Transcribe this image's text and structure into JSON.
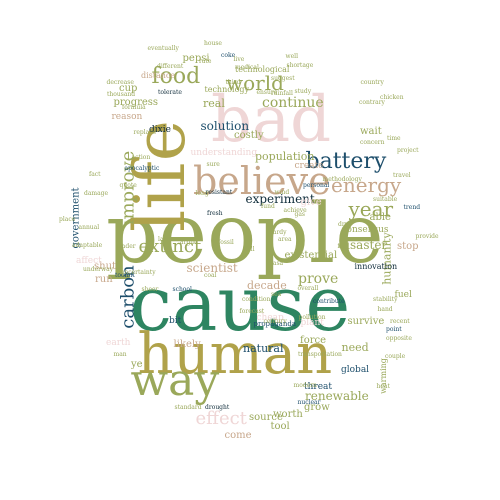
{
  "colors": {
    "olive": "#9aa85a",
    "gold": "#b0a24a",
    "teal": "#2e8561",
    "navy": "#1d4e6b",
    "pink": "#efd6d6",
    "tan": "#c7a78b",
    "dark": "#0f2c3a"
  },
  "words": [
    {
      "text": "people",
      "color": "olive",
      "size": 82,
      "vertical": false
    },
    {
      "text": "cause",
      "color": "teal",
      "size": 76,
      "vertical": false
    },
    {
      "text": "life",
      "color": "gold",
      "size": 70,
      "vertical": true
    },
    {
      "text": "human",
      "color": "gold",
      "size": 56,
      "vertical": false
    },
    {
      "text": "bad",
      "color": "pink",
      "size": 64,
      "vertical": false
    },
    {
      "text": "way",
      "color": "olive",
      "size": 44,
      "vertical": false
    },
    {
      "text": "believe",
      "color": "tan",
      "size": 38,
      "vertical": false
    },
    {
      "text": "battery",
      "color": "navy",
      "size": 22,
      "vertical": false
    },
    {
      "text": "food",
      "color": "olive",
      "size": 22,
      "vertical": false
    },
    {
      "text": "world",
      "color": "olive",
      "size": 20,
      "vertical": false
    },
    {
      "text": "energy",
      "color": "tan",
      "size": 20,
      "vertical": false
    },
    {
      "text": "year",
      "color": "olive",
      "size": 20,
      "vertical": false
    },
    {
      "text": "extinct",
      "color": "olive",
      "size": 18,
      "vertical": false
    },
    {
      "text": "improve",
      "color": "olive",
      "size": 18,
      "vertical": true
    },
    {
      "text": "carbon",
      "color": "navy",
      "size": 18,
      "vertical": true
    },
    {
      "text": "effect",
      "color": "pink",
      "size": 18,
      "vertical": false
    },
    {
      "text": "continue",
      "color": "olive",
      "size": 14,
      "vertical": false
    },
    {
      "text": "experiment",
      "color": "dark",
      "size": 12,
      "vertical": false
    },
    {
      "text": "solution",
      "color": "navy",
      "size": 12,
      "vertical": false
    },
    {
      "text": "population",
      "color": "olive",
      "size": 11,
      "vertical": false
    },
    {
      "text": "scientist",
      "color": "tan",
      "size": 12,
      "vertical": false
    },
    {
      "text": "prove",
      "color": "olive",
      "size": 14,
      "vertical": false
    },
    {
      "text": "renewable",
      "color": "olive",
      "size": 12,
      "vertical": false
    },
    {
      "text": "natural",
      "color": "navy",
      "size": 11,
      "vertical": false
    },
    {
      "text": "force",
      "color": "olive",
      "size": 10,
      "vertical": false
    },
    {
      "text": "need",
      "color": "olive",
      "size": 11,
      "vertical": false
    },
    {
      "text": "decade",
      "color": "tan",
      "size": 11,
      "vertical": false
    },
    {
      "text": "disaster",
      "color": "olive",
      "size": 12,
      "vertical": false
    },
    {
      "text": "humanity",
      "color": "olive",
      "size": 11,
      "vertical": true
    },
    {
      "text": "government",
      "color": "navy",
      "size": 10,
      "vertical": true
    },
    {
      "text": "global",
      "color": "navy",
      "size": 9,
      "vertical": false
    },
    {
      "text": "grow",
      "color": "olive",
      "size": 10,
      "vertical": false
    },
    {
      "text": "threat",
      "color": "navy",
      "size": 9,
      "vertical": false
    },
    {
      "text": "worth",
      "color": "olive",
      "size": 10,
      "vertical": false
    },
    {
      "text": "source",
      "color": "olive",
      "size": 10,
      "vertical": false
    },
    {
      "text": "come",
      "color": "tan",
      "size": 10,
      "vertical": false
    },
    {
      "text": "tool",
      "color": "olive",
      "size": 10,
      "vertical": false
    },
    {
      "text": "survive",
      "color": "olive",
      "size": 10,
      "vertical": false
    },
    {
      "text": "existential",
      "color": "olive",
      "size": 10,
      "vertical": false
    },
    {
      "text": "innovation",
      "color": "dark",
      "size": 8,
      "vertical": false
    },
    {
      "text": "costly",
      "color": "olive",
      "size": 10,
      "vertical": false
    },
    {
      "text": "real",
      "color": "olive",
      "size": 11,
      "vertical": false
    },
    {
      "text": "progress",
      "color": "olive",
      "size": 10,
      "vertical": false
    },
    {
      "text": "cup",
      "color": "olive",
      "size": 10,
      "vertical": false
    },
    {
      "text": "reason",
      "color": "tan",
      "size": 9,
      "vertical": false
    },
    {
      "text": "dixie",
      "color": "dark",
      "size": 9,
      "vertical": false
    },
    {
      "text": "pepsi",
      "color": "olive",
      "size": 10,
      "vertical": false
    },
    {
      "text": "technology",
      "color": "olive",
      "size": 8,
      "vertical": false
    },
    {
      "text": "technological",
      "color": "olive",
      "size": 8,
      "vertical": false
    },
    {
      "text": "distance",
      "color": "tan",
      "size": 8,
      "vertical": false
    },
    {
      "text": "create",
      "color": "tan",
      "size": 9,
      "vertical": false
    },
    {
      "text": "consensus",
      "color": "olive",
      "size": 9,
      "vertical": false
    },
    {
      "text": "wait",
      "color": "olive",
      "size": 10,
      "vertical": false
    },
    {
      "text": "able",
      "color": "olive",
      "size": 10,
      "vertical": false
    },
    {
      "text": "stop",
      "color": "tan",
      "size": 10,
      "vertical": false
    },
    {
      "text": "fuel",
      "color": "olive",
      "size": 9,
      "vertical": false
    },
    {
      "text": "bit",
      "color": "navy",
      "size": 9,
      "vertical": false
    },
    {
      "text": "shut",
      "color": "tan",
      "size": 10,
      "vertical": false
    },
    {
      "text": "run",
      "color": "tan",
      "size": 10,
      "vertical": false
    },
    {
      "text": "ye",
      "color": "olive",
      "size": 10,
      "vertical": false
    },
    {
      "text": "likely",
      "color": "tan",
      "size": 10,
      "vertical": false
    },
    {
      "text": "understanding",
      "color": "pink",
      "size": 9,
      "vertical": false
    },
    {
      "text": "give",
      "color": "pink",
      "size": 10,
      "vertical": false
    },
    {
      "text": "affect",
      "color": "pink",
      "size": 9,
      "vertical": false
    },
    {
      "text": "warming",
      "color": "olive",
      "size": 8,
      "vertical": true
    },
    {
      "text": "earth",
      "color": "pink",
      "size": 9,
      "vertical": false
    },
    {
      "text": "plant",
      "color": "pink",
      "size": 9,
      "vertical": false
    },
    {
      "text": "cheap",
      "color": "pink",
      "size": 9,
      "vertical": false
    },
    {
      "text": "propaganda",
      "color": "navy",
      "size": 7,
      "vertical": false
    },
    {
      "text": "century",
      "color": "olive",
      "size": 6,
      "vertical": false
    },
    {
      "text": "standard",
      "color": "olive",
      "size": 6,
      "vertical": false
    },
    {
      "text": "drought",
      "color": "dark",
      "size": 6,
      "vertical": false
    },
    {
      "text": "nuclear",
      "color": "navy",
      "size": 6,
      "vertical": false
    },
    {
      "text": "personal",
      "color": "navy",
      "size": 6,
      "vertical": false
    },
    {
      "text": "methodology",
      "color": "olive",
      "size": 6,
      "vertical": false
    },
    {
      "text": "resistant",
      "color": "dark",
      "size": 6,
      "vertical": false
    },
    {
      "text": "fresh",
      "color": "dark",
      "size": 6,
      "vertical": false
    },
    {
      "text": "sheer",
      "color": "olive",
      "size": 6,
      "vertical": false
    },
    {
      "text": "school",
      "color": "navy",
      "size": 6,
      "vertical": false
    },
    {
      "text": "toolbit",
      "color": "navy",
      "size": 6,
      "vertical": false
    },
    {
      "text": "trader",
      "color": "olive",
      "size": 6,
      "vertical": false
    },
    {
      "text": "large",
      "color": "olive",
      "size": 6,
      "vertical": false
    },
    {
      "text": "argue",
      "color": "olive",
      "size": 6,
      "vertical": false
    },
    {
      "text": "long",
      "color": "olive",
      "size": 6,
      "vertical": false
    },
    {
      "text": "sure",
      "color": "olive",
      "size": 6,
      "vertical": false
    },
    {
      "text": "quote",
      "color": "olive",
      "size": 6,
      "vertical": false
    },
    {
      "text": "action",
      "color": "olive",
      "size": 6,
      "vertical": false
    },
    {
      "text": "apocalyptic",
      "color": "navy",
      "size": 6,
      "vertical": false
    },
    {
      "text": "tolerate",
      "color": "dark",
      "size": 6,
      "vertical": false
    },
    {
      "text": "different",
      "color": "olive",
      "size": 6,
      "vertical": false
    },
    {
      "text": "coke",
      "color": "navy",
      "size": 6,
      "vertical": false
    },
    {
      "text": "medical",
      "color": "olive",
      "size": 6,
      "vertical": false
    },
    {
      "text": "eventually",
      "color": "olive",
      "size": 6,
      "vertical": false
    },
    {
      "text": "ensure",
      "color": "olive",
      "size": 6,
      "vertical": false
    },
    {
      "text": "modern",
      "color": "olive",
      "size": 6,
      "vertical": false
    },
    {
      "text": "heat",
      "color": "olive",
      "size": 6,
      "vertical": false
    },
    {
      "text": "opposite",
      "color": "olive",
      "size": 6,
      "vertical": false
    },
    {
      "text": "recent",
      "color": "olive",
      "size": 6,
      "vertical": false
    },
    {
      "text": "suitable",
      "color": "olive",
      "size": 6,
      "vertical": false
    },
    {
      "text": "provide",
      "color": "olive",
      "size": 6,
      "vertical": false
    },
    {
      "text": "oil",
      "color": "olive",
      "size": 6,
      "vertical": false
    },
    {
      "text": "trend",
      "color": "navy",
      "size": 6,
      "vertical": false
    },
    {
      "text": "rainfall",
      "color": "olive",
      "size": 6,
      "vertical": false
    },
    {
      "text": "stability",
      "color": "olive",
      "size": 6,
      "vertical": false
    },
    {
      "text": "hand",
      "color": "olive",
      "size": 6,
      "vertical": false
    },
    {
      "text": "point",
      "color": "navy",
      "size": 6,
      "vertical": false
    },
    {
      "text": "couple",
      "color": "olive",
      "size": 6,
      "vertical": false
    },
    {
      "text": "shortage",
      "color": "olive",
      "size": 6,
      "vertical": false
    },
    {
      "text": "contrary",
      "color": "olive",
      "size": 6,
      "vertical": false
    },
    {
      "text": "country",
      "color": "olive",
      "size": 6,
      "vertical": false
    },
    {
      "text": "study",
      "color": "olive",
      "size": 6,
      "vertical": false
    },
    {
      "text": "project",
      "color": "olive",
      "size": 6,
      "vertical": false
    },
    {
      "text": "concern",
      "color": "olive",
      "size": 6,
      "vertical": false
    },
    {
      "text": "chicken",
      "color": "olive",
      "size": 6,
      "vertical": false
    },
    {
      "text": "time",
      "color": "olive",
      "size": 6,
      "vertical": false
    },
    {
      "text": "travel",
      "color": "olive",
      "size": 6,
      "vertical": false
    },
    {
      "text": "suggest",
      "color": "olive",
      "size": 6,
      "vertical": false
    },
    {
      "text": "house",
      "color": "olive",
      "size": 6,
      "vertical": false
    },
    {
      "text": "third",
      "color": "olive",
      "size": 6,
      "vertical": false
    },
    {
      "text": "decrease",
      "color": "olive",
      "size": 6,
      "vertical": false
    },
    {
      "text": "thousand",
      "color": "olive",
      "size": 6,
      "vertical": false
    },
    {
      "text": "formula",
      "color": "olive",
      "size": 6,
      "vertical": false
    },
    {
      "text": "replace",
      "color": "olive",
      "size": 6,
      "vertical": false
    },
    {
      "text": "fact",
      "color": "olive",
      "size": 6,
      "vertical": false
    },
    {
      "text": "area",
      "color": "olive",
      "size": 6,
      "vertical": false
    },
    {
      "text": "overall",
      "color": "olive",
      "size": 6,
      "vertical": false
    },
    {
      "text": "pollution",
      "color": "olive",
      "size": 6,
      "vertical": false
    },
    {
      "text": "condition",
      "color": "olive",
      "size": 6,
      "vertical": false
    },
    {
      "text": "contribute",
      "color": "navy",
      "size": 6,
      "vertical": false
    },
    {
      "text": "sea",
      "color": "olive",
      "size": 6,
      "vertical": false
    },
    {
      "text": "gas",
      "color": "olive",
      "size": 6,
      "vertical": false
    },
    {
      "text": "dry",
      "color": "olive",
      "size": 6,
      "vertical": false
    },
    {
      "text": "fly",
      "color": "olive",
      "size": 6,
      "vertical": false
    },
    {
      "text": "man",
      "color": "olive",
      "size": 6,
      "vertical": false
    },
    {
      "text": "place",
      "color": "olive",
      "size": 6,
      "vertical": false
    },
    {
      "text": "damage",
      "color": "olive",
      "size": 6,
      "vertical": false
    },
    {
      "text": "annual",
      "color": "olive",
      "size": 6,
      "vertical": false
    },
    {
      "text": "uncertainty",
      "color": "olive",
      "size": 6,
      "vertical": false
    },
    {
      "text": "adaptable",
      "color": "olive",
      "size": 6,
      "vertical": false
    },
    {
      "text": "underway",
      "color": "olive",
      "size": 6,
      "vertical": false
    },
    {
      "text": "transportation",
      "color": "olive",
      "size": 6,
      "vertical": false
    },
    {
      "text": "nasa",
      "color": "olive",
      "size": 6,
      "vertical": false
    },
    {
      "text": "hardy",
      "color": "olive",
      "size": 6,
      "vertical": false
    },
    {
      "text": "forecast",
      "color": "olive",
      "size": 6,
      "vertical": false
    },
    {
      "text": "fossil",
      "color": "olive",
      "size": 6,
      "vertical": false
    },
    {
      "text": "wind",
      "color": "olive",
      "size": 6,
      "vertical": false
    },
    {
      "text": "achieve",
      "color": "olive",
      "size": 6,
      "vertical": false
    },
    {
      "text": "fund",
      "color": "olive",
      "size": 6,
      "vertical": false
    },
    {
      "text": "coal",
      "color": "olive",
      "size": 6,
      "vertical": false
    },
    {
      "text": "rate",
      "color": "olive",
      "size": 6,
      "vertical": false
    },
    {
      "text": "live",
      "color": "olive",
      "size": 6,
      "vertical": false
    },
    {
      "text": "well",
      "color": "olive",
      "size": 6,
      "vertical": false
    },
    {
      "text": "fall",
      "color": "olive",
      "size": 6,
      "vertical": false
    }
  ]
}
